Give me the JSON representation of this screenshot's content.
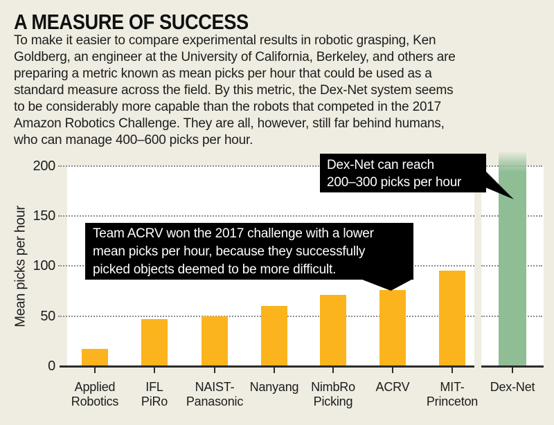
{
  "title": "A MEASURE OF SUCCESS",
  "intro": "To make it easier to compare experimental results in robotic grasping, Ken\nGoldberg, an engineer at the University of California, Berkeley, and others are\npreparing a metric known as mean picks per hour that could be used as a\nstandard measure across the field. By this metric, the Dex-Net system seems\nto be considerably more capable than the robots that competed in the 2017\nAmazon Robotics Challenge. They are all, however, still far behind humans,\nwho can manage 400–600 picks per hour.",
  "chart_data": {
    "type": "bar",
    "title": "A MEASURE OF SUCCESS",
    "xlabel": "",
    "ylabel": "Mean picks per hour",
    "ylim": [
      0,
      200
    ],
    "ytick_labels": [
      "200",
      "150",
      "100",
      "50",
      "0"
    ],
    "grid": "horizontal dotted gridlines at 50, 100, 150, 200",
    "legend": "none",
    "categories": [
      "Applied Robotics",
      "IFL PiRo",
      "NAIST-Panasonic",
      "Nanyang",
      "NimbRo Picking",
      "ACRV",
      "MIT-Princeton",
      "Dex-Net"
    ],
    "categories_display": [
      "Applied\nRobotics",
      "IFL\nPiRo",
      "NAIST-\nPanasonic",
      "Nanyang",
      "NimbRo\nPicking",
      "ACRV",
      "MIT-\nPrinceton",
      "Dex-Net"
    ],
    "values": [
      17,
      47,
      50,
      60,
      71,
      76,
      95,
      null
    ],
    "dexnet": {
      "label": "Dex-Net",
      "range_min": 200,
      "range_max": 300,
      "off_chart": true,
      "note": "green bar extends past top of axis and fades out above 200"
    },
    "bar_color": "#FBB41D",
    "dexnet_bar_color": "#8FBE94",
    "annotations": [
      {
        "text": "Dex-Net can reach\n200–300 picks per hour",
        "target": "Dex-Net"
      },
      {
        "text": "Team ACRV won the 2017 challenge with a lower\nmean picks per hour, because they successfully\npicked objects deemed to be more difficult.",
        "target": "ACRV"
      }
    ]
  },
  "colors": {
    "background": "#EFEDE2",
    "plot_background": "#FFFFFF",
    "orange_bar": "#FBB41D",
    "green_bar": "#8FBE94",
    "callout_background": "#000000",
    "callout_text": "#FFFFFF",
    "text": "#1B1B1B",
    "grid_dots": "#8A8A8A",
    "axis": "#2A2A2A"
  }
}
